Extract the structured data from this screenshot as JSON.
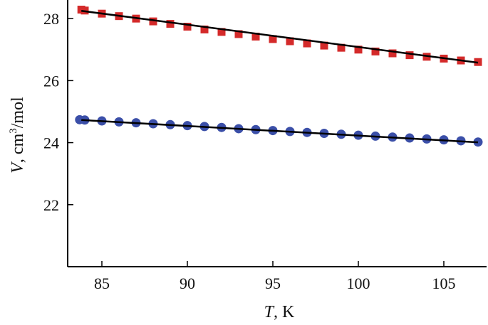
{
  "chart_data": {
    "type": "scatter",
    "xlabel_var": "T",
    "xlabel_unit": ", K",
    "ylabel_var": "V",
    "ylabel_unit_pre": ", cm",
    "ylabel_sup": "3",
    "ylabel_unit_post": "/mol",
    "xlim": [
      83.0,
      107.5
    ],
    "ylim": [
      20.0,
      28.6
    ],
    "xticks": [
      85,
      90,
      95,
      100,
      105
    ],
    "yticks": [
      22,
      24,
      26,
      28
    ],
    "grid": false,
    "legend": "none",
    "series": [
      {
        "marker": "square",
        "color": "#d42a2a",
        "x": [
          83.8,
          84.0,
          85.0,
          86.0,
          87.0,
          88.0,
          89.0,
          90.0,
          91.0,
          92.0,
          93.0,
          94.0,
          95.0,
          96.0,
          97.0,
          98.0,
          99.0,
          100.0,
          101.0,
          102.0,
          103.0,
          104.0,
          105.0,
          106.0,
          107.0
        ],
        "y": [
          28.29,
          28.26,
          28.16,
          28.08,
          28.0,
          27.91,
          27.83,
          27.74,
          27.65,
          27.57,
          27.5,
          27.42,
          27.34,
          27.27,
          27.2,
          27.13,
          27.06,
          27.0,
          26.94,
          26.88,
          26.82,
          26.77,
          26.71,
          26.65,
          26.6
        ]
      },
      {
        "marker": "circle",
        "color": "#3b4fa8",
        "x": [
          83.7,
          84.0,
          85.0,
          86.0,
          87.0,
          88.0,
          89.0,
          90.0,
          91.0,
          92.0,
          93.0,
          94.0,
          95.0,
          96.0,
          97.0,
          98.0,
          99.0,
          100.0,
          101.0,
          102.0,
          103.0,
          104.0,
          105.0,
          106.0,
          107.0
        ],
        "y": [
          24.74,
          24.73,
          24.7,
          24.67,
          24.64,
          24.61,
          24.58,
          24.55,
          24.52,
          24.49,
          24.45,
          24.42,
          24.39,
          24.36,
          24.33,
          24.3,
          24.27,
          24.24,
          24.21,
          24.18,
          24.15,
          24.12,
          24.09,
          24.06,
          24.02
        ]
      }
    ],
    "fit_lines": [
      {
        "x": [
          83.8,
          107.0
        ],
        "y": [
          28.25,
          26.58
        ],
        "color": "#000000"
      },
      {
        "x": [
          83.8,
          107.0
        ],
        "y": [
          24.73,
          24.01
        ],
        "color": "#000000"
      }
    ]
  }
}
